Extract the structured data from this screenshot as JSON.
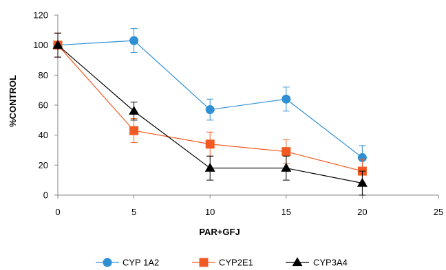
{
  "chart_data": {
    "type": "line",
    "xlabel": "PAR+GFJ",
    "ylabel": "%CONTROL",
    "x": [
      0,
      5,
      10,
      15,
      20
    ],
    "xlim": [
      0,
      25
    ],
    "ylim": [
      0,
      120
    ],
    "xticks": [
      0,
      5,
      10,
      15,
      20,
      25
    ],
    "yticks": [
      0,
      20,
      40,
      60,
      80,
      100,
      120
    ],
    "grid": false,
    "legend_position": "bottom",
    "series": [
      {
        "name": "CYP 1A2",
        "color": "#2E8FD4",
        "marker": "circle",
        "values": [
          100,
          103,
          57,
          64,
          25
        ],
        "error": [
          0,
          8,
          7,
          8,
          8
        ]
      },
      {
        "name": "CYP2E1",
        "color": "#F15A22",
        "marker": "square",
        "values": [
          100,
          43,
          34,
          29,
          16
        ],
        "error": [
          8,
          8,
          8,
          8,
          8
        ]
      },
      {
        "name": "CYP3A4",
        "color": "#000000",
        "marker": "triangle",
        "values": [
          100,
          56,
          18,
          18,
          8
        ],
        "error": [
          8,
          6,
          8,
          8,
          8
        ]
      }
    ]
  }
}
